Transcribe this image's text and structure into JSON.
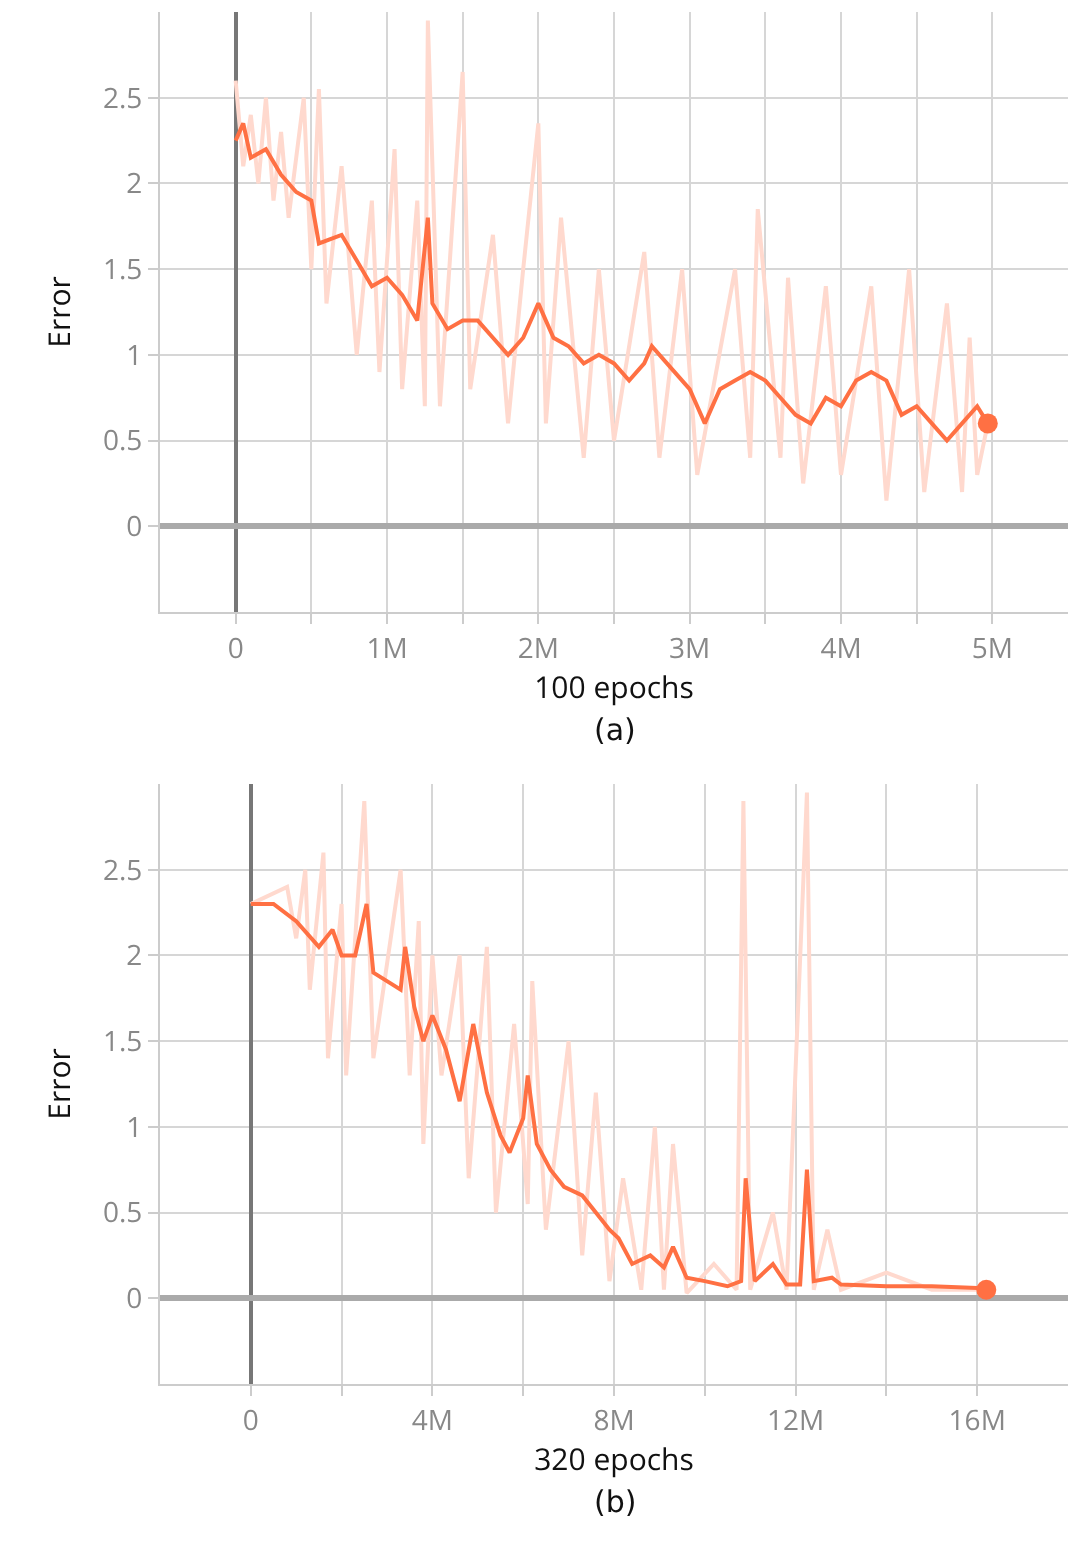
{
  "chart_data": [
    {
      "type": "line",
      "xlabel": "100 epochs",
      "ylabel": "Error",
      "annotations": [
        "(a)"
      ],
      "grid": true,
      "xlim": [
        -500000,
        5500000
      ],
      "ylim": [
        -0.5,
        3
      ],
      "xticks": [
        {
          "value": 0,
          "label": "0"
        },
        {
          "value": 500000,
          "label": null
        },
        {
          "value": 1000000,
          "label": "1M"
        },
        {
          "value": 1500000,
          "label": null
        },
        {
          "value": 2000000,
          "label": "2M"
        },
        {
          "value": 2500000,
          "label": null
        },
        {
          "value": 3000000,
          "label": "3M"
        },
        {
          "value": 3500000,
          "label": null
        },
        {
          "value": 4000000,
          "label": "4M"
        },
        {
          "value": 4500000,
          "label": null
        },
        {
          "value": 5000000,
          "label": "5M"
        }
      ],
      "yticks": [
        0,
        0.5,
        1,
        1.5,
        2,
        2.5
      ],
      "series": [
        {
          "color": "#ffd9ce",
          "x": [
            0,
            50000,
            100000,
            150000,
            200000,
            250000,
            300000,
            350000,
            450000,
            500000,
            550000,
            600000,
            700000,
            800000,
            900000,
            950000,
            1050000,
            1100000,
            1200000,
            1250000,
            1270000,
            1350000,
            1500000,
            1550000,
            1700000,
            1800000,
            1900000,
            2000000,
            2050000,
            2150000,
            2300000,
            2400000,
            2500000,
            2700000,
            2800000,
            2950000,
            3050000,
            3300000,
            3400000,
            3450000,
            3600000,
            3650000,
            3750000,
            3900000,
            4000000,
            4200000,
            4300000,
            4450000,
            4550000,
            4700000,
            4800000,
            4850000,
            4900000,
            4970000
          ],
          "values": [
            2.6,
            2.1,
            2.4,
            2.0,
            2.5,
            1.9,
            2.3,
            1.8,
            2.5,
            1.5,
            2.55,
            1.3,
            2.1,
            1.0,
            1.9,
            0.9,
            2.2,
            0.8,
            1.9,
            0.7,
            2.95,
            0.7,
            2.65,
            0.8,
            1.7,
            0.6,
            1.5,
            2.35,
            0.6,
            1.8,
            0.4,
            1.5,
            0.5,
            1.6,
            0.4,
            1.5,
            0.3,
            1.5,
            0.4,
            1.85,
            0.4,
            1.45,
            0.25,
            1.4,
            0.3,
            1.4,
            0.15,
            1.5,
            0.2,
            1.3,
            0.2,
            1.1,
            0.3,
            0.6
          ]
        },
        {
          "color": "#ff7043",
          "x": [
            0,
            50000,
            100000,
            200000,
            300000,
            400000,
            500000,
            550000,
            700000,
            800000,
            900000,
            1000000,
            1100000,
            1200000,
            1270000,
            1300000,
            1400000,
            1500000,
            1600000,
            1700000,
            1800000,
            1900000,
            2000000,
            2100000,
            2200000,
            2300000,
            2400000,
            2500000,
            2600000,
            2700000,
            2750000,
            2850000,
            3000000,
            3100000,
            3200000,
            3300000,
            3400000,
            3500000,
            3600000,
            3700000,
            3800000,
            3900000,
            4000000,
            4100000,
            4200000,
            4300000,
            4400000,
            4500000,
            4600000,
            4700000,
            4800000,
            4900000,
            4970000
          ],
          "values": [
            2.25,
            2.35,
            2.15,
            2.2,
            2.05,
            1.95,
            1.9,
            1.65,
            1.7,
            1.55,
            1.4,
            1.45,
            1.35,
            1.2,
            1.8,
            1.3,
            1.15,
            1.2,
            1.2,
            1.1,
            1.0,
            1.1,
            1.3,
            1.1,
            1.05,
            0.95,
            1.0,
            0.95,
            0.85,
            0.95,
            1.05,
            0.95,
            0.8,
            0.6,
            0.8,
            0.85,
            0.9,
            0.85,
            0.75,
            0.65,
            0.6,
            0.75,
            0.7,
            0.85,
            0.9,
            0.85,
            0.65,
            0.7,
            0.6,
            0.5,
            0.6,
            0.7,
            0.6
          ]
        },
        {
          "type": "scatter",
          "color": "#ff7043",
          "x": [
            4970000
          ],
          "values": [
            0.6
          ]
        }
      ]
    },
    {
      "type": "line",
      "xlabel": "320 epochs",
      "ylabel": "Error",
      "annotations": [
        "(b)"
      ],
      "grid": true,
      "xlim": [
        -2000000,
        18000000
      ],
      "ylim": [
        -0.5,
        3
      ],
      "xticks": [
        {
          "value": 0,
          "label": "0"
        },
        {
          "value": 2000000,
          "label": null
        },
        {
          "value": 4000000,
          "label": "4M"
        },
        {
          "value": 6000000,
          "label": null
        },
        {
          "value": 8000000,
          "label": "8M"
        },
        {
          "value": 10000000,
          "label": null
        },
        {
          "value": 12000000,
          "label": "12M"
        },
        {
          "value": 14000000,
          "label": null
        },
        {
          "value": 16000000,
          "label": "16M"
        }
      ],
      "yticks": [
        0,
        0.5,
        1,
        1.5,
        2,
        2.5
      ],
      "series": [
        {
          "color": "#ffd9ce",
          "x": [
            0,
            800000,
            1000000,
            1200000,
            1300000,
            1600000,
            1700000,
            2000000,
            2100000,
            2500000,
            2700000,
            3300000,
            3500000,
            3700000,
            3800000,
            4000000,
            4200000,
            4600000,
            4800000,
            5200000,
            5400000,
            5800000,
            6100000,
            6200000,
            6500000,
            7000000,
            7300000,
            7600000,
            7900000,
            8200000,
            8600000,
            8900000,
            9100000,
            9300000,
            9600000,
            10200000,
            10700000,
            10850000,
            11000000,
            11500000,
            11800000,
            12250000,
            12400000,
            12700000,
            13000000,
            14000000,
            15000000,
            16200000
          ],
          "values": [
            2.3,
            2.4,
            2.1,
            2.5,
            1.8,
            2.6,
            1.4,
            2.3,
            1.3,
            2.9,
            1.4,
            2.5,
            1.3,
            2.2,
            0.9,
            2.0,
            1.3,
            2.0,
            0.7,
            2.05,
            0.5,
            1.6,
            0.55,
            1.85,
            0.4,
            1.5,
            0.25,
            1.2,
            0.1,
            0.7,
            0.05,
            1.0,
            0.05,
            0.9,
            0.03,
            0.2,
            0.05,
            2.9,
            0.05,
            0.5,
            0.05,
            2.95,
            0.05,
            0.4,
            0.05,
            0.15,
            0.05,
            0.05
          ]
        },
        {
          "color": "#ff7043",
          "x": [
            0,
            500000,
            1000000,
            1500000,
            1800000,
            2000000,
            2300000,
            2550000,
            2700000,
            3000000,
            3300000,
            3400000,
            3600000,
            3800000,
            4000000,
            4300000,
            4600000,
            4900000,
            5200000,
            5500000,
            5700000,
            6000000,
            6100000,
            6300000,
            6600000,
            6900000,
            7300000,
            7600000,
            7900000,
            8100000,
            8400000,
            8800000,
            9100000,
            9300000,
            9600000,
            10000000,
            10500000,
            10800000,
            10900000,
            11100000,
            11500000,
            11800000,
            12100000,
            12250000,
            12400000,
            12800000,
            13000000,
            14000000,
            15000000,
            16000000,
            16200000
          ],
          "values": [
            2.3,
            2.3,
            2.2,
            2.05,
            2.15,
            2.0,
            2.0,
            2.3,
            1.9,
            1.85,
            1.8,
            2.05,
            1.7,
            1.5,
            1.65,
            1.45,
            1.15,
            1.6,
            1.2,
            0.95,
            0.85,
            1.05,
            1.3,
            0.9,
            0.75,
            0.65,
            0.6,
            0.5,
            0.4,
            0.35,
            0.2,
            0.25,
            0.18,
            0.3,
            0.12,
            0.1,
            0.07,
            0.1,
            0.7,
            0.1,
            0.2,
            0.08,
            0.08,
            0.75,
            0.1,
            0.12,
            0.08,
            0.07,
            0.07,
            0.06,
            0.05
          ]
        },
        {
          "type": "scatter",
          "color": "#ff7043",
          "x": [
            16200000
          ],
          "values": [
            0.05
          ]
        }
      ]
    }
  ]
}
